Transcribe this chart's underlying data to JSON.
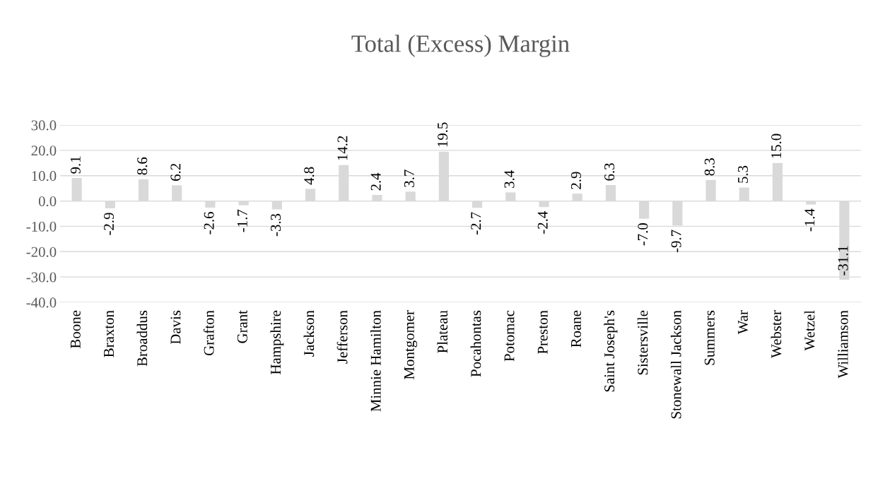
{
  "chart_data": {
    "type": "bar",
    "title": "Total (Excess) Margin",
    "categories": [
      "Boone",
      "Braxton",
      "Broaddus",
      "Davis",
      "Grafton",
      "Grant",
      "Hampshire",
      "Jackson",
      "Jefferson",
      "Minnie Hamilton",
      "Montgomer",
      "Plateau",
      "Pocahontas",
      "Potomac",
      "Preston",
      "Roane",
      "Saint Joseph's",
      "Sistersville",
      "Stonewall Jackson",
      "Summers",
      "War",
      "Webster",
      "Wetzel",
      "Williamson"
    ],
    "values": [
      9.1,
      -2.9,
      8.6,
      6.2,
      -2.6,
      -1.7,
      -3.3,
      4.8,
      14.2,
      2.4,
      3.7,
      19.5,
      -2.7,
      3.4,
      -2.4,
      2.9,
      6.3,
      -7.0,
      -9.7,
      8.3,
      5.3,
      15.0,
      -1.4,
      -31.1
    ],
    "value_labels": [
      "9.1",
      "-2.9",
      "8.6",
      "6.2",
      "-2.6",
      "-1.7",
      "-3.3",
      "4.8",
      "14.2",
      "2.4",
      "3.7",
      "19.5",
      "-2.7",
      "3.4",
      "-2.4",
      "2.9",
      "6.3",
      "-7.0",
      "-9.7",
      "8.3",
      "5.3",
      "15.0",
      "-1.4",
      "-31.1"
    ],
    "color": "#d9d9d9",
    "ylim": [
      -40,
      30
    ],
    "yticks": [
      {
        "value": -40,
        "label": "-40.0"
      },
      {
        "value": -30,
        "label": "-30.0"
      },
      {
        "value": -20,
        "label": "-20.0"
      },
      {
        "value": -10,
        "label": "-10.0"
      },
      {
        "value": 0,
        "label": "0.0"
      },
      {
        "value": 10,
        "label": "10.0"
      },
      {
        "value": 20,
        "label": "20.0"
      },
      {
        "value": 30,
        "label": "30.0"
      }
    ],
    "grid": "y"
  }
}
